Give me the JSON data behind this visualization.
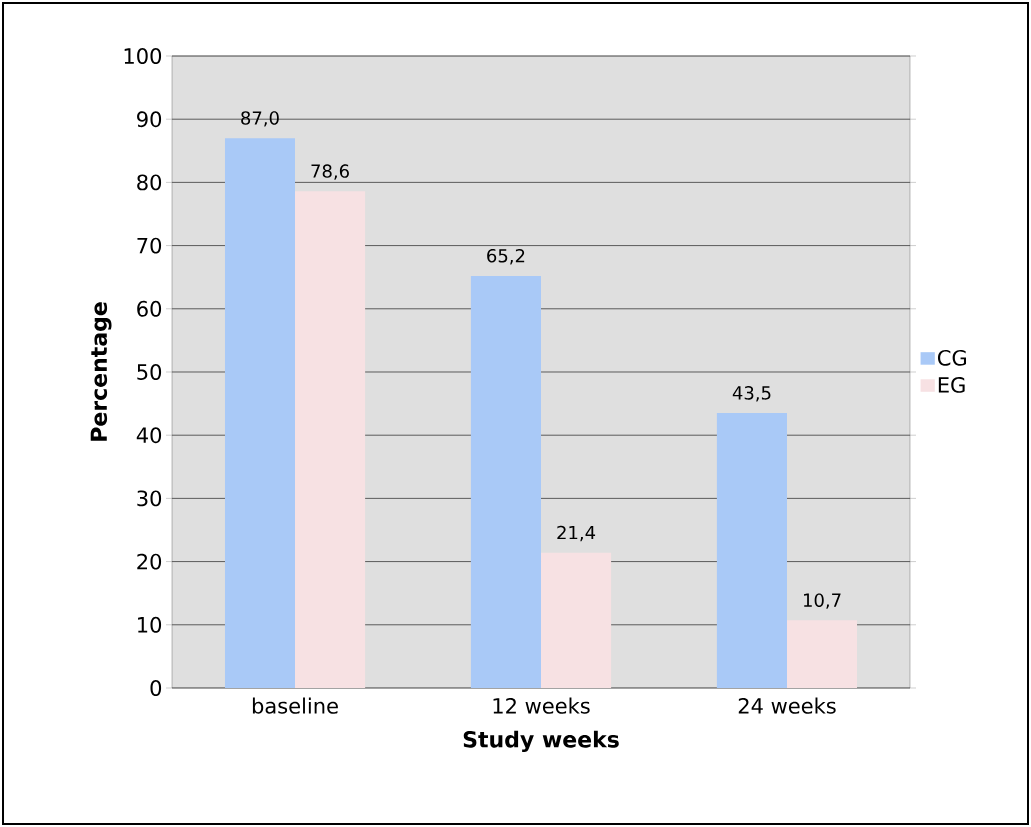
{
  "chart_data": {
    "type": "bar",
    "xlabel": "Study weeks",
    "ylabel": "Percentage",
    "categories": [
      "baseline",
      "12 weeks",
      "24 weeks"
    ],
    "series": [
      {
        "name": "CG",
        "color": "#a9c9f7",
        "values": [
          87.0,
          65.2,
          43.5
        ],
        "value_labels": [
          "87,0",
          "65,2",
          "43,5"
        ]
      },
      {
        "name": "EG",
        "color": "#f7e1e3",
        "values": [
          78.6,
          21.4,
          10.7
        ],
        "value_labels": [
          "78,6",
          "21,4",
          "10,7"
        ]
      }
    ],
    "ylim": [
      0,
      100
    ],
    "yticks": [
      0,
      10,
      20,
      30,
      40,
      50,
      60,
      70,
      80,
      90,
      100
    ],
    "grid": "y",
    "legend": "right"
  }
}
